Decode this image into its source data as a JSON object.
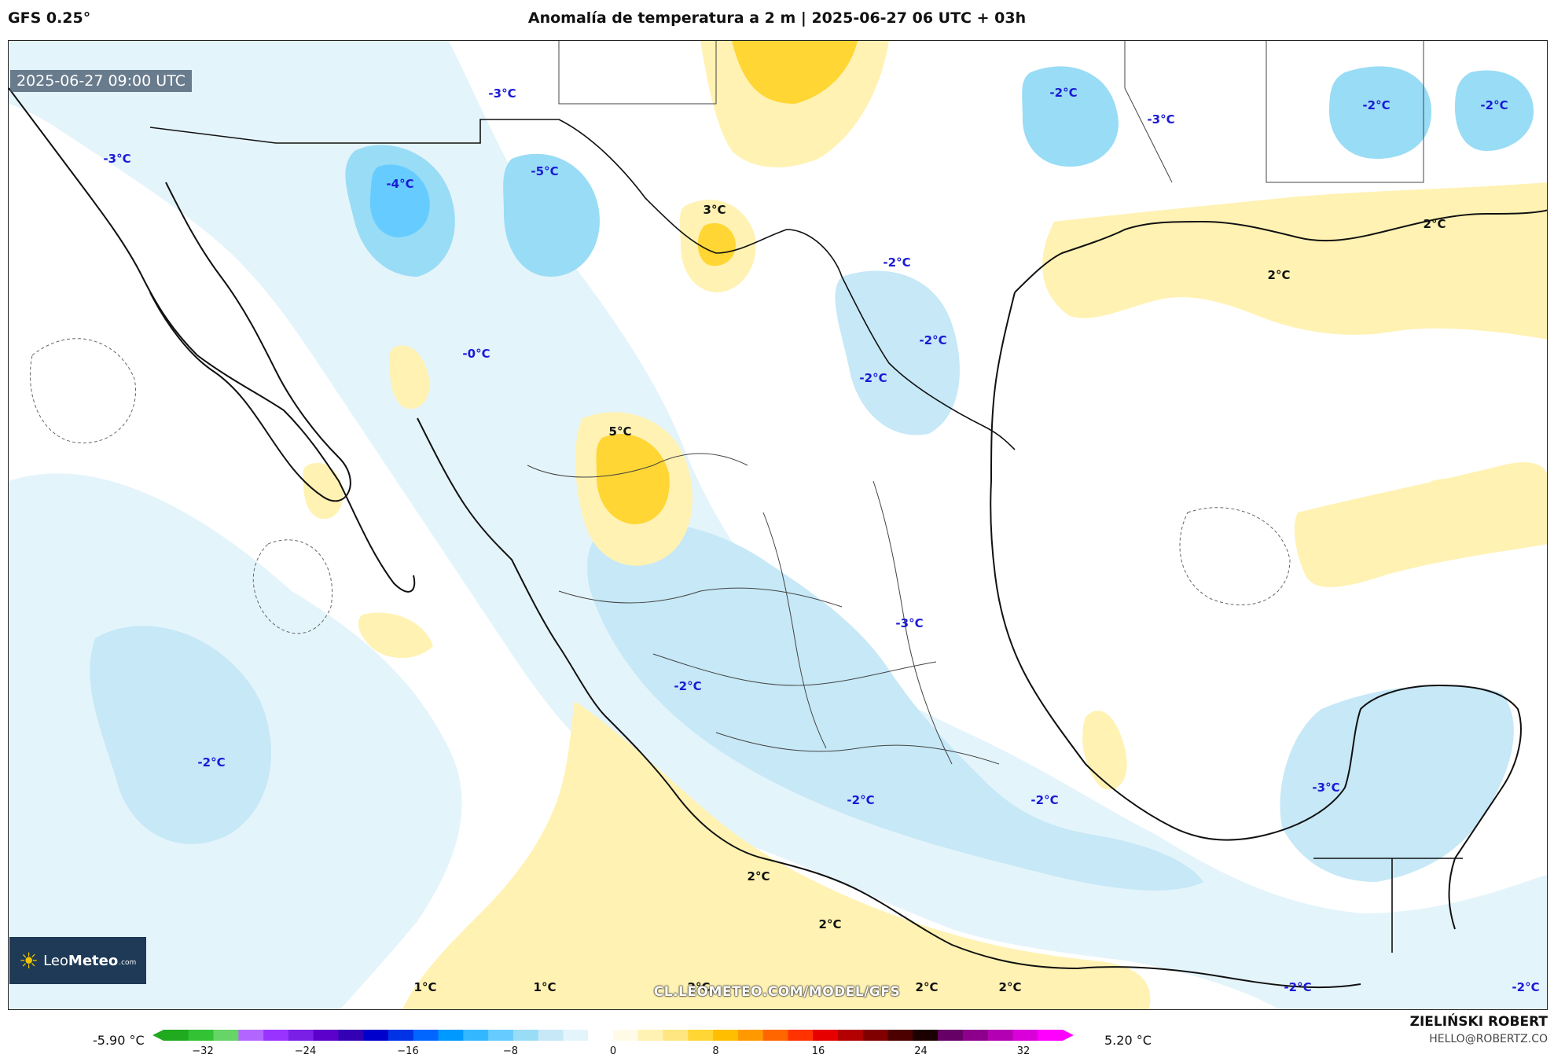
{
  "header": {
    "model": "GFS 0.25°",
    "title": "Anomalía de temperatura a 2 m | 2025-06-27 06 UTC + 03h"
  },
  "valid_time": "2025-06-27 09:00 UTC",
  "logo": {
    "brand_light": "Leo",
    "brand_bold": "Meteo",
    "tld": ".com",
    "icon": "sun-icon"
  },
  "watermark": "CL.LEOMETEO.COM/MODEL/GFS",
  "colorbar": {
    "min_label": "-5.90 °C",
    "max_label": "5.20 °C",
    "ticks": [
      "−32",
      "−24",
      "−16",
      "−8",
      "0",
      "8",
      "16",
      "24",
      "32"
    ],
    "colors": [
      "#1faa1f",
      "#33c233",
      "#66d466",
      "#b266ff",
      "#9933ff",
      "#7a1fe6",
      "#5c00cc",
      "#3300b3",
      "#0000cc",
      "#0033e6",
      "#0066ff",
      "#0099ff",
      "#33b8ff",
      "#66ccff",
      "#99dcf5",
      "#c6e8f7",
      "#e4f4fb",
      "#ffffff",
      "#fffbe6",
      "#fff2b3",
      "#ffe680",
      "#ffd633",
      "#ffbf00",
      "#ff9900",
      "#ff6600",
      "#ff3300",
      "#e60000",
      "#b30000",
      "#800000",
      "#4d0000",
      "#1a0000",
      "#660066",
      "#8c008c",
      "#b300b3",
      "#d900d9",
      "#ff00ff"
    ],
    "legend_colors": {
      "neg1": "#e4f4fb",
      "neg2": "#c6e8f7",
      "neg3": "#99dcf5",
      "neg4": "#66ccff",
      "neg5": "#33b8ff",
      "pos1": "#fff2b3",
      "pos2": "#ffd633"
    }
  },
  "labels": [
    {
      "text": "-3°C",
      "sign": "neg"
    },
    {
      "text": "-3°C",
      "sign": "neg"
    },
    {
      "text": "-4°C",
      "sign": "neg"
    },
    {
      "text": "-5°C",
      "sign": "neg"
    },
    {
      "text": "3°C",
      "sign": "pos"
    },
    {
      "text": "-0°C",
      "sign": "neg"
    },
    {
      "text": "5°C",
      "sign": "pos"
    },
    {
      "text": "-2°C",
      "sign": "neg"
    },
    {
      "text": "-3°C",
      "sign": "neg"
    },
    {
      "text": "-2°C",
      "sign": "neg"
    },
    {
      "text": "-2°C",
      "sign": "neg"
    },
    {
      "text": "-2°C",
      "sign": "neg"
    },
    {
      "text": "-2°C",
      "sign": "neg"
    },
    {
      "text": "-2°C",
      "sign": "neg"
    },
    {
      "text": "2°C",
      "sign": "pos"
    },
    {
      "text": "2°C",
      "sign": "pos"
    },
    {
      "text": "-3°C",
      "sign": "neg"
    },
    {
      "text": "-2°C",
      "sign": "neg"
    },
    {
      "text": "-2°C",
      "sign": "neg"
    },
    {
      "text": "-2°C",
      "sign": "neg"
    },
    {
      "text": "-2°C",
      "sign": "neg"
    },
    {
      "text": "-3°C",
      "sign": "neg"
    },
    {
      "text": "2°C",
      "sign": "pos"
    },
    {
      "text": "2°C",
      "sign": "pos"
    },
    {
      "text": "1°C",
      "sign": "pos"
    },
    {
      "text": "1°C",
      "sign": "pos"
    },
    {
      "text": "2°C",
      "sign": "pos"
    },
    {
      "text": "2°C",
      "sign": "pos"
    },
    {
      "text": "2°C",
      "sign": "pos"
    },
    {
      "text": "-2°C",
      "sign": "neg"
    },
    {
      "text": "-2°C",
      "sign": "neg"
    }
  ],
  "author": {
    "name": "ZIELIŃSKI ROBERT",
    "email": "HELLO@ROBERTZ.CO"
  }
}
